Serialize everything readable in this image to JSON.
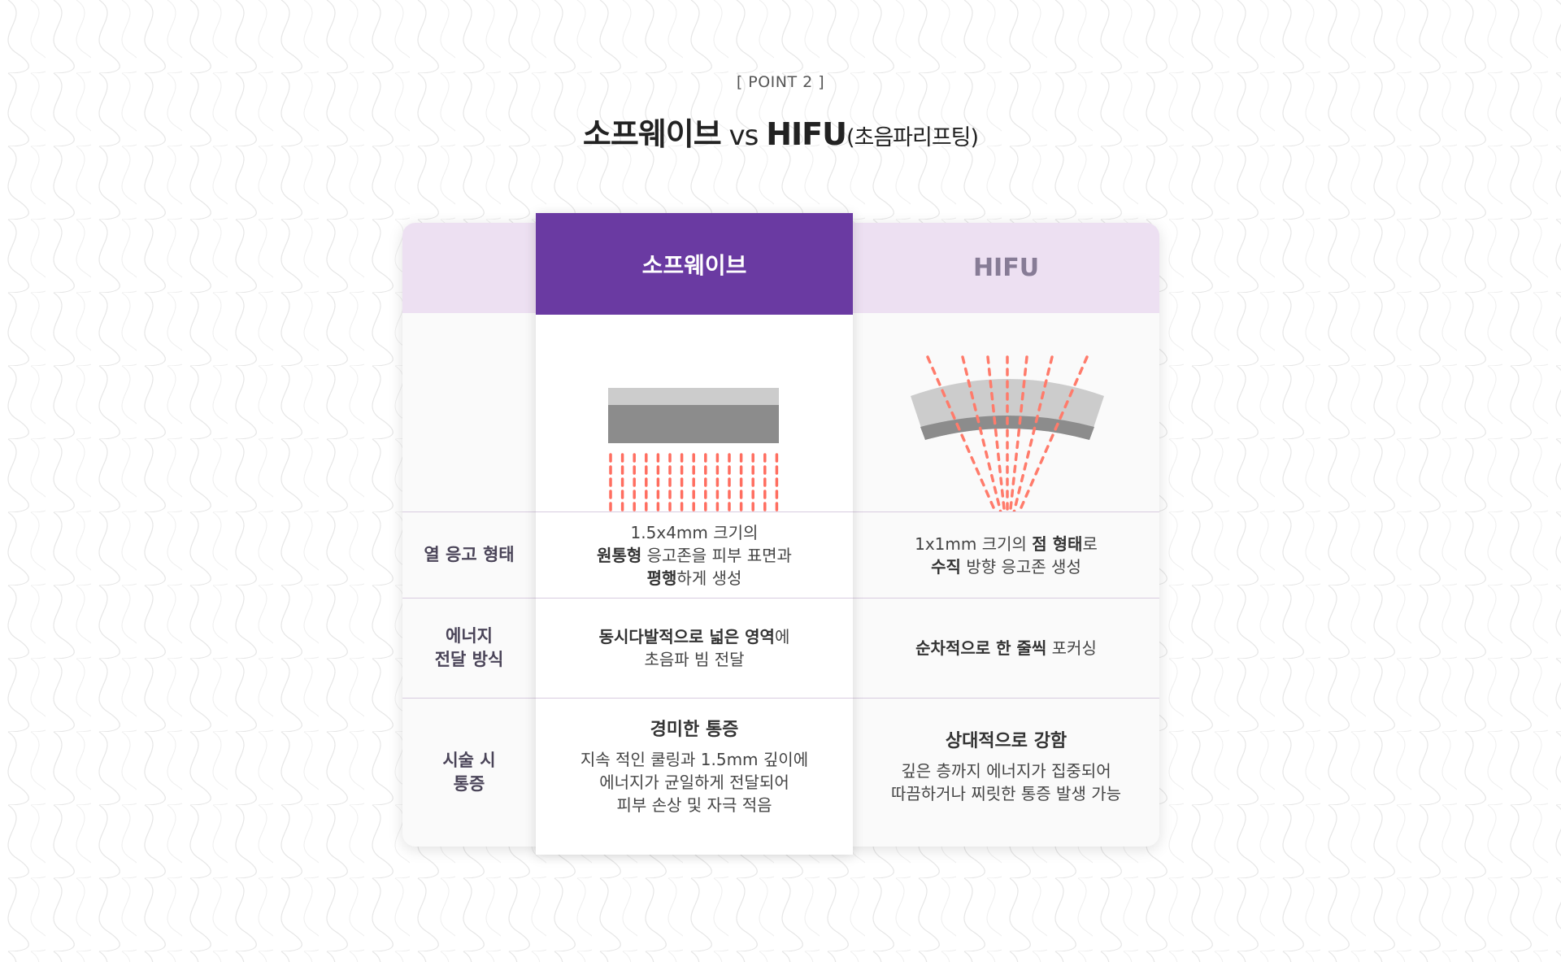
{
  "header": {
    "eyebrow": "[ POINT 2 ]",
    "title_main": "소프웨이브",
    "title_vs": " vs ",
    "title_hifu": "HIFU",
    "title_sub": "(초음파리프팅)"
  },
  "table": {
    "columns": [
      "소프웨이브",
      "HIFU"
    ],
    "rows": [
      {
        "label_lines": [
          "열 응고 형태"
        ],
        "softwave": {
          "line1": "1.5x4mm 크기의",
          "line2_bold": "원통형",
          "line2_rest": " 응고존을 피부 표면과",
          "line3_bold": "평행",
          "line3_rest": "하게 생성"
        },
        "hifu": {
          "line1_pre": "1x1mm 크기의 ",
          "line1_bold": "점 형태",
          "line1_rest": "로",
          "line2_bold": "수직",
          "line2_rest": " 방향 응고존 생성"
        }
      },
      {
        "label_lines": [
          "에너지",
          "전달 방식"
        ],
        "softwave": {
          "line1_bold": "동시다발적으로 넓은 영역",
          "line1_rest": "에",
          "line2": "초음파 빔 전달"
        },
        "hifu": {
          "line1_bold": "순차적으로 한 줄씩",
          "line1_rest": " 포커싱"
        }
      },
      {
        "label_lines": [
          "시술 시",
          "통증"
        ],
        "softwave": {
          "headline": "경미한 통증",
          "lines": [
            "지속 적인 쿨링과 1.5mm 깊이에",
            "에너지가 균일하게 전달되어",
            "피부 손상 및 자극 적음"
          ]
        },
        "hifu": {
          "headline": "상대적으로 강함",
          "lines": [
            "깊은 층까지 에너지가 집중되어",
            "따끔하거나 찌릿한 통증 발생 가능"
          ]
        }
      }
    ]
  },
  "colors": {
    "accent": "#6a3aa2",
    "header_bg": "#ede0f2",
    "beam": "#ff7b6b",
    "zone": "#f98bb6"
  }
}
